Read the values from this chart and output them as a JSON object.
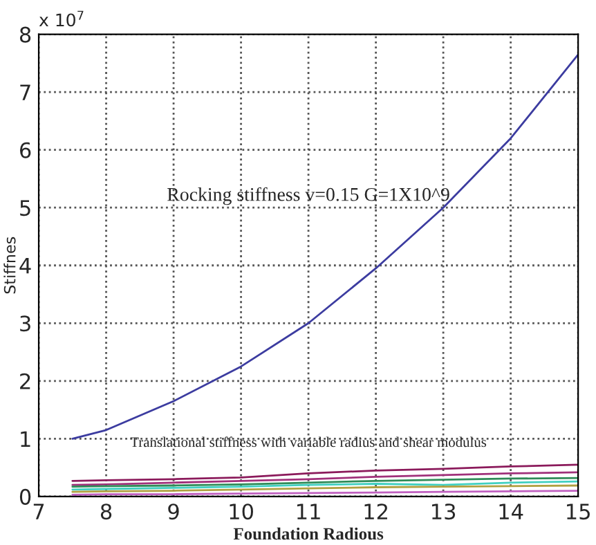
{
  "chart_data": {
    "type": "line",
    "xlabel": "Foundation Radious",
    "ylabel": "Stiffnes",
    "xlim": [
      7,
      15
    ],
    "xticks": [
      7,
      8,
      9,
      10,
      11,
      12,
      13,
      14,
      15
    ],
    "ylim": [
      0,
      8
    ],
    "yticks": [
      0,
      1,
      2,
      3,
      4,
      5,
      6,
      7,
      8
    ],
    "grid": true,
    "legend": false,
    "marker": "none",
    "line_style": "solid",
    "x": [
      7.5,
      8,
      9,
      10,
      11,
      12,
      13,
      14,
      15
    ],
    "series": [
      {
        "color": "#3c3ca0",
        "values": [
          1.0,
          1.15,
          1.65,
          2.25,
          3.0,
          3.95,
          5.0,
          6.2,
          7.65
        ]
      },
      {
        "color": "#8b1a5b",
        "values": [
          0.27,
          0.28,
          0.3,
          0.33,
          0.4,
          0.45,
          0.48,
          0.52,
          0.55
        ]
      },
      {
        "color": "#a0307a",
        "values": [
          0.2,
          0.21,
          0.24,
          0.27,
          0.3,
          0.34,
          0.37,
          0.4,
          0.42
        ]
      },
      {
        "color": "#2e8b57",
        "values": [
          0.17,
          0.18,
          0.19,
          0.21,
          0.24,
          0.27,
          0.29,
          0.31,
          0.32
        ]
      },
      {
        "color": "#40d0c0",
        "values": [
          0.12,
          0.13,
          0.15,
          0.17,
          0.2,
          0.22,
          0.2,
          0.24,
          0.26
        ]
      },
      {
        "color": "#b0a040",
        "values": [
          0.08,
          0.09,
          0.1,
          0.12,
          0.14,
          0.16,
          0.17,
          0.18,
          0.19
        ]
      },
      {
        "color": "#c060c0",
        "values": [
          0.03,
          0.04,
          0.04,
          0.05,
          0.06,
          0.07,
          0.08,
          0.09,
          0.1
        ]
      }
    ],
    "annotations": [
      "Rocking stiffness v=0.15 G=1X10^9",
      "Translational stiffness with variable radius and shear modulus",
      "x 10$^{7}$"
    ]
  }
}
